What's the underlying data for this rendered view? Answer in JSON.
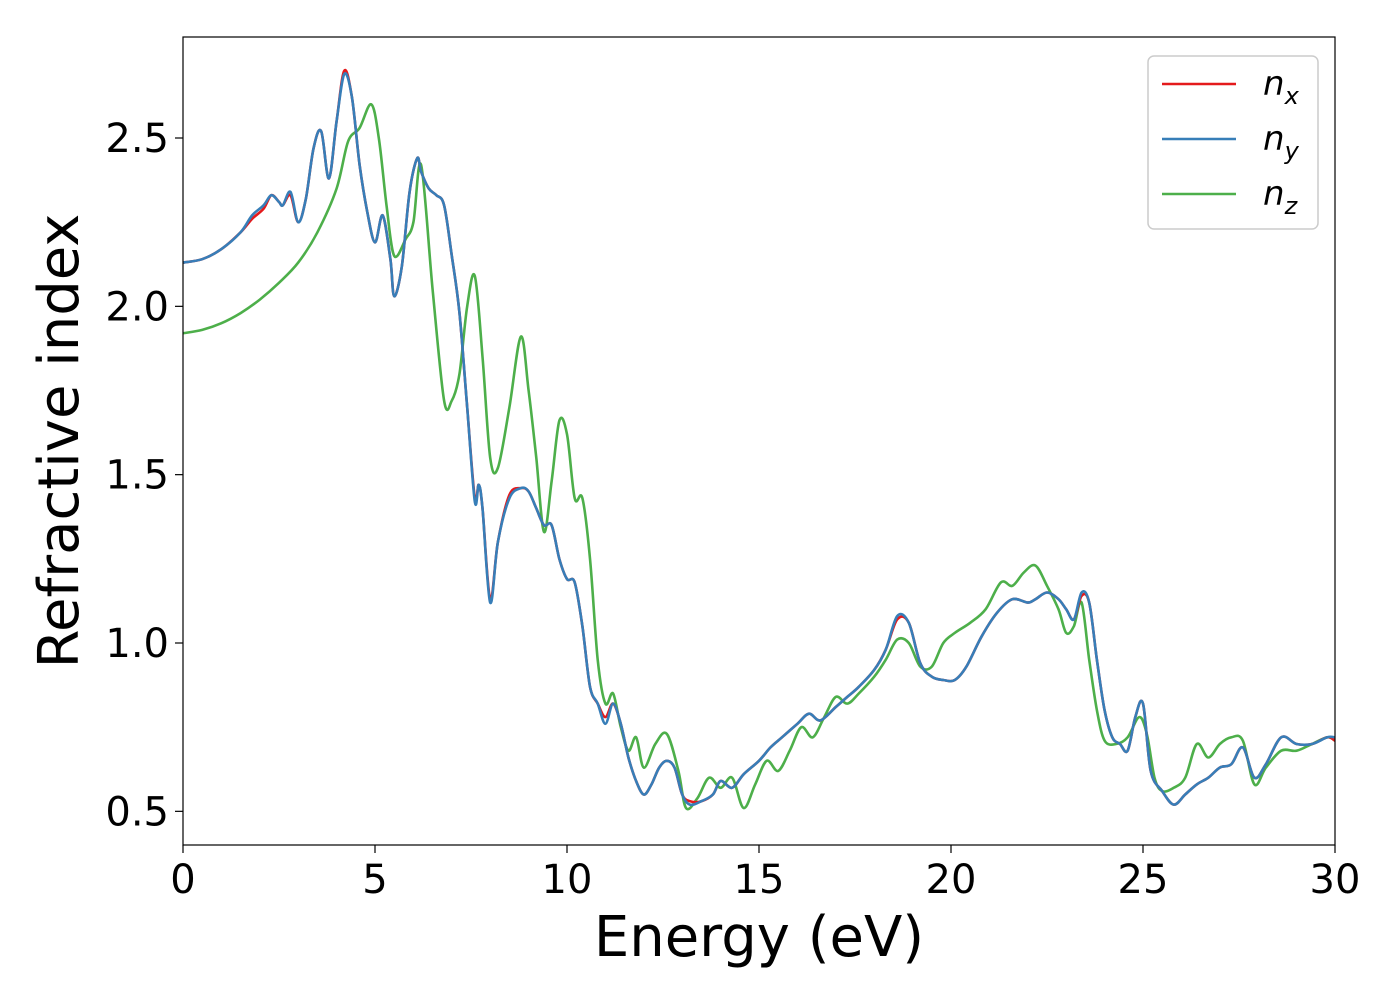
{
  "chart_data": {
    "type": "line",
    "title": "",
    "xlabel": "Energy (eV)",
    "ylabel": "Refractive index",
    "xlim": [
      0,
      30
    ],
    "ylim": [
      0.4,
      2.8
    ],
    "xticks": [
      0,
      5,
      10,
      15,
      20,
      25,
      30
    ],
    "yticks": [
      0.5,
      1.0,
      1.5,
      2.0,
      2.5
    ],
    "xtick_labels": [
      "0",
      "5",
      "10",
      "15",
      "20",
      "25",
      "30"
    ],
    "ytick_labels": [
      "0.5",
      "1.0",
      "1.5",
      "2.0",
      "2.5"
    ],
    "grid": false,
    "legend_position": "top-right",
    "series": [
      {
        "name": "n_x",
        "label_main": "n",
        "label_sub": "x",
        "color": "#e41a1c",
        "x": [
          0,
          0.5,
          1.0,
          1.5,
          1.8,
          2.1,
          2.3,
          2.5,
          2.6,
          2.8,
          3.0,
          3.2,
          3.4,
          3.6,
          3.8,
          4.0,
          4.2,
          4.4,
          4.6,
          4.8,
          5.0,
          5.2,
          5.4,
          5.5,
          5.7,
          5.9,
          6.1,
          6.2,
          6.4,
          6.6,
          6.8,
          7.0,
          7.2,
          7.4,
          7.6,
          7.7,
          7.8,
          8.0,
          8.2,
          8.5,
          8.8,
          9.0,
          9.2,
          9.4,
          9.6,
          9.8,
          10.0,
          10.2,
          10.4,
          10.6,
          10.8,
          11.0,
          11.2,
          11.4,
          11.6,
          11.8,
          12.0,
          12.2,
          12.4,
          12.6,
          12.8,
          13.0,
          13.2,
          13.5,
          13.8,
          14.0,
          14.3,
          14.6,
          15.0,
          15.3,
          15.6,
          16.0,
          16.3,
          16.6,
          17.0,
          17.3,
          17.6,
          18.0,
          18.3,
          18.6,
          18.9,
          19.2,
          19.5,
          19.8,
          20.1,
          20.4,
          20.8,
          21.2,
          21.6,
          22.0,
          22.2,
          22.5,
          22.8,
          23.0,
          23.2,
          23.4,
          23.6,
          23.8,
          24.0,
          24.2,
          24.4,
          24.6,
          24.8,
          25.0,
          25.2,
          25.5,
          25.8,
          26.1,
          26.4,
          26.7,
          27.0,
          27.3,
          27.6,
          27.9,
          28.2,
          28.6,
          29.0,
          29.4,
          29.8,
          30.0
        ],
        "y": [
          2.13,
          2.14,
          2.17,
          2.22,
          2.26,
          2.29,
          2.33,
          2.31,
          2.3,
          2.33,
          2.25,
          2.32,
          2.47,
          2.52,
          2.38,
          2.55,
          2.7,
          2.62,
          2.42,
          2.28,
          2.19,
          2.27,
          2.14,
          2.03,
          2.12,
          2.34,
          2.44,
          2.4,
          2.35,
          2.33,
          2.3,
          2.15,
          1.98,
          1.7,
          1.43,
          1.47,
          1.4,
          1.13,
          1.3,
          1.44,
          1.46,
          1.45,
          1.4,
          1.35,
          1.35,
          1.25,
          1.19,
          1.18,
          1.05,
          0.87,
          0.82,
          0.78,
          0.82,
          0.76,
          0.66,
          0.59,
          0.55,
          0.58,
          0.63,
          0.65,
          0.63,
          0.55,
          0.53,
          0.53,
          0.55,
          0.59,
          0.57,
          0.61,
          0.65,
          0.69,
          0.72,
          0.76,
          0.79,
          0.77,
          0.81,
          0.84,
          0.87,
          0.92,
          0.98,
          1.07,
          1.06,
          0.94,
          0.9,
          0.89,
          0.89,
          0.93,
          1.02,
          1.09,
          1.13,
          1.12,
          1.13,
          1.15,
          1.13,
          1.1,
          1.07,
          1.14,
          1.12,
          0.95,
          0.8,
          0.72,
          0.7,
          0.68,
          0.78,
          0.82,
          0.62,
          0.56,
          0.52,
          0.55,
          0.58,
          0.6,
          0.63,
          0.64,
          0.69,
          0.6,
          0.64,
          0.72,
          0.7,
          0.7,
          0.72,
          0.71
        ]
      },
      {
        "name": "n_y",
        "label_main": "n",
        "label_sub": "y",
        "color": "#377eb8",
        "x": [
          0,
          0.5,
          1.0,
          1.5,
          1.8,
          2.1,
          2.3,
          2.5,
          2.6,
          2.8,
          3.0,
          3.2,
          3.4,
          3.6,
          3.8,
          4.0,
          4.2,
          4.4,
          4.6,
          4.8,
          5.0,
          5.2,
          5.4,
          5.5,
          5.7,
          5.9,
          6.1,
          6.2,
          6.4,
          6.6,
          6.8,
          7.0,
          7.2,
          7.4,
          7.6,
          7.7,
          7.8,
          8.0,
          8.2,
          8.5,
          8.8,
          9.0,
          9.2,
          9.4,
          9.6,
          9.8,
          10.0,
          10.2,
          10.4,
          10.6,
          10.8,
          11.0,
          11.2,
          11.4,
          11.6,
          11.8,
          12.0,
          12.2,
          12.4,
          12.6,
          12.8,
          13.0,
          13.2,
          13.5,
          13.8,
          14.0,
          14.3,
          14.6,
          15.0,
          15.3,
          15.6,
          16.0,
          16.3,
          16.6,
          17.0,
          17.3,
          17.6,
          18.0,
          18.3,
          18.6,
          18.9,
          19.2,
          19.5,
          19.8,
          20.1,
          20.4,
          20.8,
          21.2,
          21.6,
          22.0,
          22.2,
          22.5,
          22.8,
          23.0,
          23.2,
          23.4,
          23.6,
          23.8,
          24.0,
          24.2,
          24.4,
          24.6,
          24.8,
          25.0,
          25.2,
          25.5,
          25.8,
          26.1,
          26.4,
          26.7,
          27.0,
          27.3,
          27.6,
          27.9,
          28.2,
          28.6,
          29.0,
          29.4,
          29.8,
          30.0
        ],
        "y": [
          2.13,
          2.14,
          2.17,
          2.22,
          2.27,
          2.3,
          2.33,
          2.31,
          2.3,
          2.34,
          2.25,
          2.32,
          2.47,
          2.52,
          2.38,
          2.55,
          2.69,
          2.62,
          2.42,
          2.28,
          2.19,
          2.27,
          2.14,
          2.03,
          2.12,
          2.34,
          2.44,
          2.4,
          2.35,
          2.33,
          2.3,
          2.15,
          1.98,
          1.7,
          1.42,
          1.47,
          1.4,
          1.12,
          1.3,
          1.43,
          1.46,
          1.45,
          1.4,
          1.35,
          1.35,
          1.25,
          1.19,
          1.18,
          1.05,
          0.87,
          0.82,
          0.76,
          0.82,
          0.76,
          0.66,
          0.59,
          0.55,
          0.58,
          0.63,
          0.65,
          0.63,
          0.55,
          0.52,
          0.53,
          0.55,
          0.59,
          0.57,
          0.61,
          0.65,
          0.69,
          0.72,
          0.76,
          0.79,
          0.77,
          0.81,
          0.84,
          0.87,
          0.92,
          0.98,
          1.08,
          1.06,
          0.94,
          0.9,
          0.89,
          0.89,
          0.93,
          1.02,
          1.09,
          1.13,
          1.12,
          1.13,
          1.15,
          1.13,
          1.1,
          1.07,
          1.15,
          1.12,
          0.95,
          0.8,
          0.72,
          0.7,
          0.68,
          0.78,
          0.82,
          0.62,
          0.56,
          0.52,
          0.55,
          0.58,
          0.6,
          0.63,
          0.64,
          0.69,
          0.6,
          0.64,
          0.72,
          0.7,
          0.7,
          0.72,
          0.72
        ]
      },
      {
        "name": "n_z",
        "label_main": "n",
        "label_sub": "z",
        "color": "#4daf4a",
        "x": [
          0,
          0.5,
          1.0,
          1.5,
          2.0,
          2.5,
          3.0,
          3.5,
          4.0,
          4.3,
          4.6,
          4.9,
          5.1,
          5.3,
          5.5,
          5.8,
          6.0,
          6.2,
          6.5,
          6.8,
          7.0,
          7.2,
          7.4,
          7.6,
          7.8,
          8.0,
          8.2,
          8.5,
          8.8,
          9.0,
          9.2,
          9.4,
          9.6,
          9.8,
          10.0,
          10.2,
          10.4,
          10.6,
          10.8,
          11.0,
          11.2,
          11.4,
          11.6,
          11.8,
          12.0,
          12.3,
          12.6,
          12.9,
          13.1,
          13.4,
          13.7,
          14.0,
          14.3,
          14.6,
          14.9,
          15.2,
          15.5,
          15.8,
          16.1,
          16.4,
          16.7,
          17.0,
          17.3,
          17.6,
          18.0,
          18.3,
          18.6,
          18.9,
          19.2,
          19.5,
          19.8,
          20.1,
          20.5,
          20.9,
          21.3,
          21.6,
          21.9,
          22.2,
          22.5,
          22.8,
          23.0,
          23.2,
          23.4,
          23.6,
          23.8,
          24.0,
          24.3,
          24.6,
          24.9,
          25.1,
          25.3,
          25.5,
          25.8,
          26.1,
          26.4,
          26.7,
          27.0,
          27.3,
          27.6,
          27.9,
          28.2,
          28.6,
          29.0,
          29.4,
          29.8,
          30.0
        ],
        "y": [
          1.92,
          1.93,
          1.95,
          1.98,
          2.02,
          2.07,
          2.13,
          2.22,
          2.35,
          2.49,
          2.53,
          2.6,
          2.5,
          2.3,
          2.15,
          2.2,
          2.25,
          2.42,
          2.05,
          1.72,
          1.72,
          1.8,
          2.0,
          2.09,
          1.85,
          1.55,
          1.52,
          1.7,
          1.91,
          1.75,
          1.55,
          1.33,
          1.48,
          1.66,
          1.62,
          1.43,
          1.43,
          1.25,
          0.95,
          0.82,
          0.85,
          0.75,
          0.68,
          0.72,
          0.63,
          0.7,
          0.73,
          0.62,
          0.51,
          0.54,
          0.6,
          0.57,
          0.6,
          0.51,
          0.58,
          0.65,
          0.62,
          0.68,
          0.75,
          0.72,
          0.78,
          0.84,
          0.82,
          0.85,
          0.9,
          0.95,
          1.01,
          1.0,
          0.93,
          0.93,
          1.0,
          1.03,
          1.06,
          1.1,
          1.18,
          1.17,
          1.21,
          1.23,
          1.17,
          1.1,
          1.03,
          1.05,
          1.12,
          0.95,
          0.8,
          0.71,
          0.7,
          0.72,
          0.78,
          0.73,
          0.6,
          0.56,
          0.57,
          0.6,
          0.7,
          0.66,
          0.7,
          0.72,
          0.71,
          0.58,
          0.63,
          0.68,
          0.68,
          0.7,
          0.72,
          0.71
        ]
      }
    ]
  }
}
